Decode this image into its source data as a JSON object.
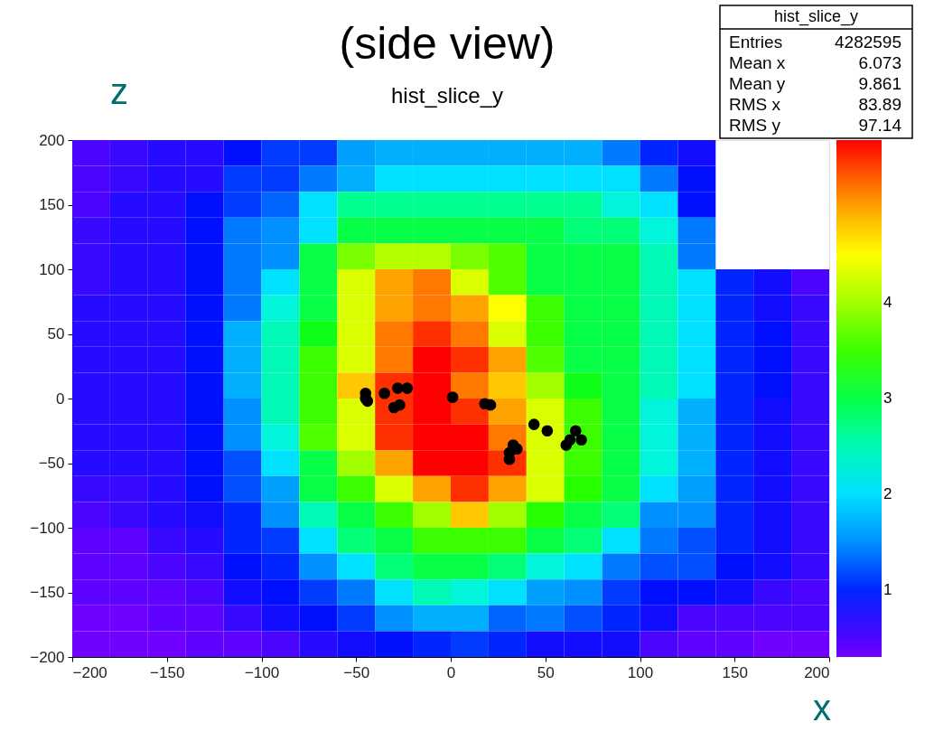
{
  "chart_data": {
    "type": "heatmap",
    "title": "(side view)",
    "subtitle": "hist_slice_y",
    "xlabel": "x",
    "ylabel": "z",
    "x": [
      -190,
      -170,
      -150,
      -130,
      -110,
      -90,
      -70,
      -50,
      -30,
      -10,
      10,
      30,
      50,
      70,
      90,
      110,
      130,
      150,
      170,
      190
    ],
    "y": [
      190,
      170,
      150,
      130,
      110,
      90,
      70,
      50,
      30,
      10,
      -10,
      -30,
      -50,
      -70,
      -90,
      -110,
      -130,
      -150,
      -170,
      -190
    ],
    "cells": [
      [
        0.5,
        0.6,
        0.7,
        0.7,
        0.9,
        1.1,
        1.1,
        1.6,
        1.7,
        1.7,
        1.7,
        1.7,
        1.7,
        1.7,
        1.4,
        1.0,
        0.8,
        null,
        null,
        null
      ],
      [
        0.5,
        0.6,
        0.7,
        0.7,
        1.1,
        1.1,
        1.4,
        1.7,
        2.0,
        2.0,
        2.0,
        2.0,
        2.0,
        2.0,
        2.0,
        1.4,
        0.9,
        null,
        null,
        null
      ],
      [
        0.5,
        0.7,
        0.7,
        0.9,
        1.1,
        1.3,
        2.0,
        2.7,
        2.7,
        2.7,
        2.7,
        2.7,
        2.7,
        2.7,
        2.3,
        2.0,
        0.9,
        null,
        null,
        null
      ],
      [
        0.6,
        0.7,
        0.7,
        0.9,
        1.4,
        1.5,
        2.0,
        3.0,
        3.0,
        3.0,
        3.0,
        3.0,
        3.0,
        2.8,
        2.8,
        2.3,
        1.4,
        null,
        null,
        null
      ],
      [
        0.6,
        0.7,
        0.7,
        0.9,
        1.4,
        1.5,
        3.0,
        3.8,
        4.1,
        4.1,
        3.8,
        3.6,
        3.0,
        3.0,
        3.0,
        2.5,
        1.4,
        null,
        null,
        null
      ],
      [
        0.6,
        0.7,
        0.7,
        0.9,
        1.4,
        2.0,
        3.0,
        4.3,
        5.0,
        5.2,
        4.3,
        3.6,
        3.0,
        3.0,
        3.0,
        2.5,
        2.0,
        1.0,
        0.8,
        0.5
      ],
      [
        0.7,
        0.7,
        0.7,
        0.9,
        1.4,
        2.3,
        3.0,
        4.3,
        5.0,
        5.2,
        5.0,
        4.5,
        3.5,
        3.0,
        3.0,
        2.5,
        2.0,
        1.0,
        0.8,
        0.6
      ],
      [
        0.7,
        0.7,
        0.7,
        0.9,
        1.7,
        2.5,
        3.2,
        4.3,
        5.2,
        5.5,
        5.2,
        4.3,
        3.5,
        3.0,
        3.0,
        2.5,
        2.0,
        1.0,
        0.9,
        0.6
      ],
      [
        0.7,
        0.7,
        0.7,
        0.9,
        1.7,
        2.5,
        3.5,
        4.3,
        5.2,
        5.7,
        5.5,
        5.0,
        3.6,
        3.0,
        3.0,
        2.5,
        2.0,
        1.0,
        0.9,
        0.6
      ],
      [
        0.7,
        0.7,
        0.7,
        0.9,
        1.7,
        2.5,
        3.5,
        4.8,
        5.5,
        5.7,
        5.2,
        4.8,
        4.0,
        3.2,
        3.0,
        2.5,
        2.0,
        1.0,
        0.9,
        0.6
      ],
      [
        0.7,
        0.7,
        0.7,
        0.9,
        1.5,
        2.5,
        3.5,
        4.3,
        5.5,
        5.7,
        5.5,
        5.0,
        4.3,
        3.5,
        3.0,
        2.3,
        1.7,
        1.0,
        0.8,
        0.6
      ],
      [
        0.7,
        0.7,
        0.7,
        0.9,
        1.5,
        2.3,
        3.6,
        4.3,
        5.5,
        5.7,
        5.7,
        5.2,
        4.3,
        3.5,
        3.0,
        2.3,
        1.7,
        1.0,
        0.8,
        0.6
      ],
      [
        0.7,
        0.7,
        0.7,
        0.9,
        1.2,
        2.0,
        3.0,
        4.0,
        5.0,
        5.7,
        5.7,
        5.5,
        4.3,
        3.5,
        3.0,
        2.3,
        1.7,
        1.0,
        0.8,
        0.6
      ],
      [
        0.6,
        0.6,
        0.7,
        0.9,
        1.2,
        1.6,
        3.0,
        3.5,
        4.3,
        5.0,
        5.5,
        5.0,
        4.3,
        3.4,
        3.0,
        2.0,
        1.6,
        1.0,
        0.8,
        0.6
      ],
      [
        0.5,
        0.6,
        0.7,
        0.8,
        1.0,
        1.5,
        2.5,
        3.0,
        3.5,
        4.0,
        4.8,
        4.0,
        3.4,
        3.0,
        2.8,
        1.5,
        1.5,
        1.0,
        0.8,
        0.6
      ],
      [
        0.4,
        0.4,
        0.6,
        0.7,
        1.0,
        1.1,
        2.0,
        2.8,
        3.0,
        3.5,
        3.5,
        3.5,
        3.0,
        2.8,
        2.0,
        1.4,
        1.2,
        1.0,
        0.8,
        0.6
      ],
      [
        0.4,
        0.4,
        0.5,
        0.6,
        0.9,
        1.0,
        1.5,
        2.0,
        2.8,
        3.0,
        3.0,
        2.8,
        2.3,
        2.0,
        1.4,
        1.2,
        1.2,
        0.9,
        0.8,
        0.6
      ],
      [
        0.4,
        0.4,
        0.4,
        0.5,
        0.8,
        0.9,
        1.1,
        1.4,
        2.0,
        2.5,
        2.3,
        2.0,
        1.6,
        1.5,
        1.1,
        0.9,
        0.9,
        0.8,
        0.6,
        0.5
      ],
      [
        0.3,
        0.3,
        0.4,
        0.4,
        0.6,
        0.8,
        0.9,
        1.1,
        1.5,
        1.7,
        1.7,
        1.3,
        1.4,
        1.2,
        1.0,
        0.8,
        0.5,
        0.5,
        0.5,
        0.5
      ],
      [
        0.3,
        0.3,
        0.3,
        0.4,
        0.4,
        0.5,
        0.7,
        0.8,
        0.9,
        1.0,
        1.1,
        1.0,
        0.8,
        0.8,
        0.8,
        0.5,
        0.4,
        0.4,
        0.3,
        0.3
      ]
    ],
    "clim": [
      0.3,
      5.7
    ],
    "cticks": [
      1,
      2,
      3,
      4
    ],
    "xlim": [
      -200,
      200
    ],
    "xticks": [
      -200,
      -150,
      -100,
      -50,
      0,
      50,
      100,
      150,
      200
    ],
    "ylim": [
      -200,
      200
    ],
    "yticks": [
      -200,
      -150,
      -100,
      -50,
      0,
      50,
      100,
      150,
      200
    ],
    "grid": false,
    "series": [
      {
        "type": "scatter",
        "color": "#000000",
        "marker": "circle",
        "x": [
          -45,
          -45,
          -44,
          -35,
          -28,
          -23,
          -30,
          -27,
          1,
          18,
          21,
          44,
          51,
          33,
          35,
          31,
          31,
          61,
          66,
          69,
          63
        ],
        "values": [
          4,
          0,
          -2,
          4,
          8,
          8,
          -7,
          -5,
          1,
          -4,
          -5,
          -20,
          -25,
          -36,
          -39,
          -47,
          -42,
          -36,
          -25,
          -32,
          -32
        ]
      }
    ],
    "annotations": [
      "hist_slice_y",
      "Entries 4282595",
      "Mean x 6.073",
      "Mean y 9.861",
      "RMS x 83.89",
      "RMS y 97.14"
    ]
  }
}
